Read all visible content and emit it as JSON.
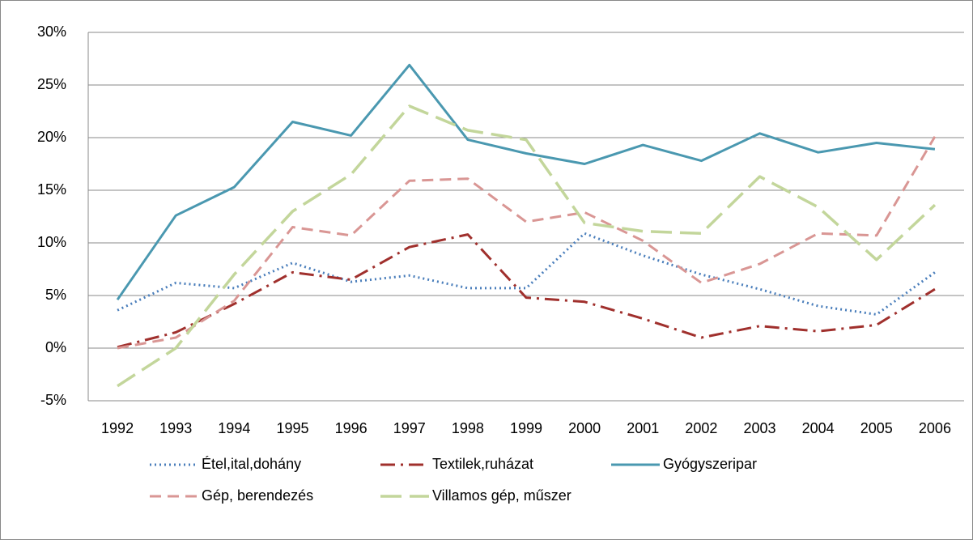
{
  "chart_data": {
    "type": "line",
    "categories": [
      "1992",
      "1993",
      "1994",
      "1995",
      "1996",
      "1997",
      "1998",
      "1999",
      "2000",
      "2001",
      "2002",
      "2003",
      "2004",
      "2005",
      "2006"
    ],
    "series": [
      {
        "name": "Étel,ital,dohány",
        "color": "#4a7ebb",
        "dash": "dot",
        "values": [
          3.6,
          6.2,
          5.7,
          8.1,
          6.3,
          6.9,
          5.7,
          5.7,
          10.9,
          8.8,
          7.0,
          5.6,
          4.0,
          3.2,
          7.2
        ]
      },
      {
        "name": "Textilek,ruházat",
        "color": "#a0302d",
        "dash": "dashdot",
        "values": [
          0.1,
          1.5,
          4.2,
          7.2,
          6.5,
          9.6,
          10.8,
          4.8,
          4.4,
          2.8,
          1.0,
          2.1,
          1.6,
          2.2,
          5.6
        ]
      },
      {
        "name": "Gyógyszeripar",
        "color": "#4a98b0",
        "dash": "solid",
        "values": [
          4.6,
          12.6,
          15.3,
          21.5,
          20.2,
          26.9,
          19.8,
          18.5,
          17.5,
          19.3,
          17.8,
          20.4,
          18.6,
          19.5,
          18.9
        ]
      },
      {
        "name": "Gép, berendezés",
        "color": "#d99694",
        "dash": "dash",
        "values": [
          0.0,
          1.0,
          4.5,
          11.5,
          10.7,
          15.9,
          16.1,
          12.0,
          12.9,
          10.2,
          6.2,
          8.0,
          10.9,
          10.7,
          20.1
        ]
      },
      {
        "name": "Villamos gép, műszer",
        "color": "#c3d69b",
        "dash": "longdash",
        "values": [
          -3.6,
          0.0,
          7.0,
          13.0,
          16.5,
          23.0,
          20.7,
          19.8,
          11.9,
          11.1,
          10.9,
          16.3,
          13.4,
          8.4,
          13.6
        ]
      }
    ],
    "ylim": [
      -5,
      30
    ],
    "yticks": [
      {
        "value": -5,
        "label": "-5%"
      },
      {
        "value": 0,
        "label": "0%"
      },
      {
        "value": 5,
        "label": "5%"
      },
      {
        "value": 10,
        "label": "10%"
      },
      {
        "value": 15,
        "label": "15%"
      },
      {
        "value": 20,
        "label": "20%"
      },
      {
        "value": 25,
        "label": "25%"
      },
      {
        "value": 30,
        "label": "30%"
      }
    ],
    "grid": true
  }
}
